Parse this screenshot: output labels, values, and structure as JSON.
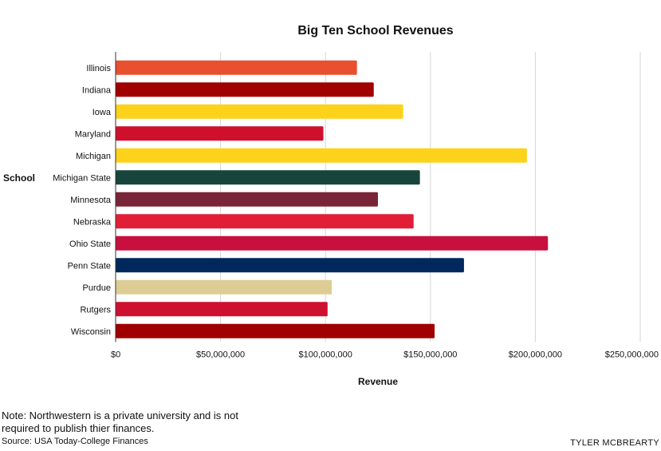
{
  "chart_data": {
    "type": "bar",
    "orientation": "horizontal",
    "title": "Big Ten School Revenues",
    "xlabel": "Revenue",
    "ylabel": "School",
    "xlim": [
      0,
      250000000
    ],
    "x_ticks": [
      "$0",
      "$50,000,000",
      "$100,000,000",
      "$150,000,000",
      "$200,000,000",
      "$250,000,000"
    ],
    "grid": true,
    "categories": [
      "Illinois",
      "Indiana",
      "Iowa",
      "Maryland",
      "Michigan",
      "Michigan State",
      "Minnesota",
      "Nebraska",
      "Ohio State",
      "Penn State",
      "Purdue",
      "Rutgers",
      "Wisconsin"
    ],
    "values": [
      115000000,
      123000000,
      137000000,
      99000000,
      196000000,
      145000000,
      125000000,
      142000000,
      206000000,
      166000000,
      103000000,
      101000000,
      152000000
    ],
    "colors": [
      "#e8502f",
      "#a00000",
      "#fdd21a",
      "#cf102d",
      "#fdd21a",
      "#18453b",
      "#7a2437",
      "#e21e36",
      "#c8103e",
      "#00285c",
      "#ddcd95",
      "#cd1030",
      "#a00000"
    ]
  },
  "footer": {
    "note": "Note: Northwestern is a private university and is not required to publish thier finances.",
    "source": "Source: USA Today-College Finances",
    "credit": "TYLER MCBREARTY"
  }
}
